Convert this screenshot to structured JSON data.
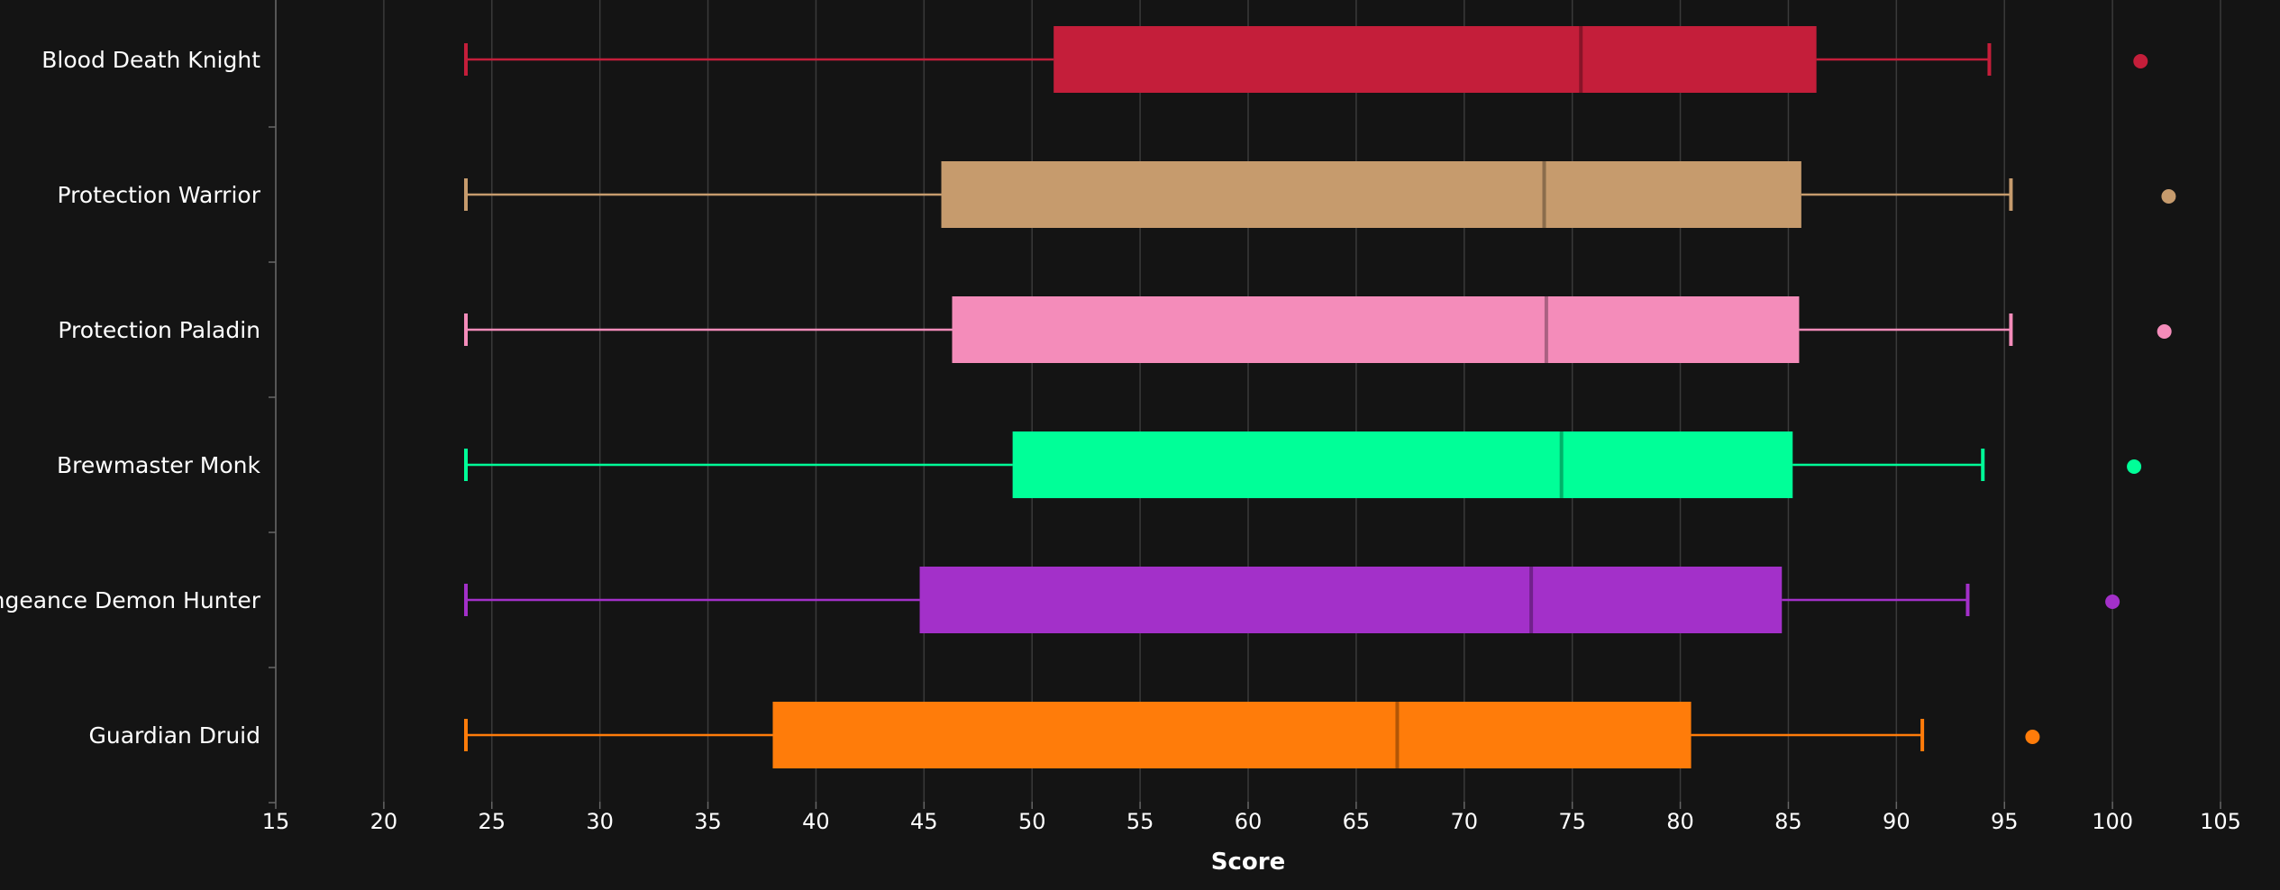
{
  "chart_data": {
    "type": "boxplot",
    "orientation": "horizontal",
    "title": "",
    "xlabel": "Score",
    "ylabel": "",
    "xlim": [
      15,
      105
    ],
    "xticks": [
      15,
      20,
      25,
      30,
      35,
      40,
      45,
      50,
      55,
      60,
      65,
      70,
      75,
      80,
      85,
      90,
      95,
      100,
      105
    ],
    "grid": "vertical",
    "background": "#141414",
    "series": [
      {
        "category": "Blood Death Knight",
        "color": "#c41e3a",
        "min": 23.8,
        "q1": 51.0,
        "median": 75.4,
        "q3": 86.3,
        "max": 94.3,
        "outliers": [
          101.3
        ]
      },
      {
        "category": "Protection Warrior",
        "color": "#c69b6d",
        "min": 23.8,
        "q1": 45.8,
        "median": 73.7,
        "q3": 85.6,
        "max": 95.3,
        "outliers": [
          102.6
        ]
      },
      {
        "category": "Protection Paladin",
        "color": "#f48cba",
        "min": 23.8,
        "q1": 46.3,
        "median": 73.8,
        "q3": 85.5,
        "max": 95.3,
        "outliers": [
          102.4
        ]
      },
      {
        "category": "Brewmaster Monk",
        "color": "#00ff98",
        "min": 23.8,
        "q1": 49.1,
        "median": 74.5,
        "q3": 85.2,
        "max": 94.0,
        "outliers": [
          101.0
        ]
      },
      {
        "category": "Vengeance Demon Hunter",
        "color": "#a330c9",
        "min": 23.8,
        "q1": 44.8,
        "median": 73.1,
        "q3": 84.7,
        "max": 93.3,
        "outliers": [
          100.0
        ]
      },
      {
        "category": "Guardian Druid",
        "color": "#ff7c0a",
        "min": 23.8,
        "q1": 38.0,
        "median": 66.9,
        "q3": 80.5,
        "max": 91.2,
        "outliers": [
          96.3
        ]
      }
    ]
  }
}
